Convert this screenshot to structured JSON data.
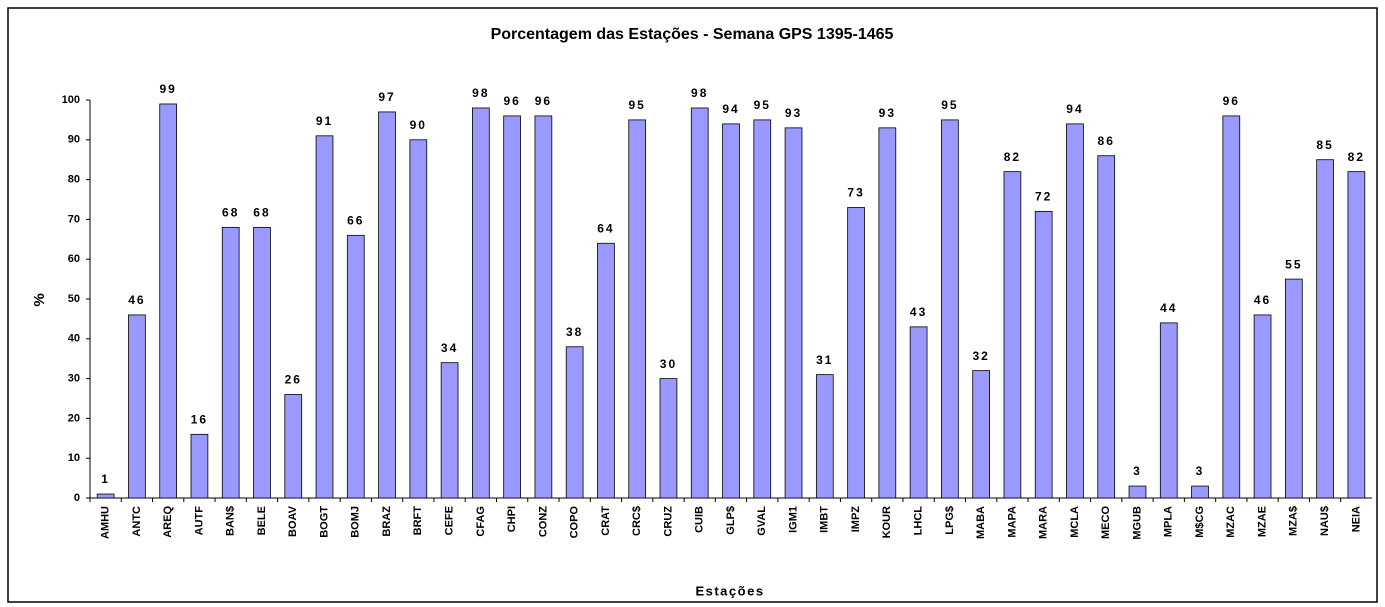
{
  "chart_data": {
    "type": "bar",
    "title": "Porcentagem das Estações - Semana GPS 1395-1465",
    "x_label": "Estações",
    "y_label": "%",
    "categories": [
      "AMHU",
      "ANTC",
      "AREQ",
      "AUTF",
      "BAN$",
      "BELE",
      "BOAV",
      "BOGT",
      "BOMJ",
      "BRAZ",
      "BRFT",
      "CEFE",
      "CFAG",
      "CHPI",
      "CONZ",
      "COPO",
      "CRAT",
      "CRC$",
      "CRUZ",
      "CUIB",
      "GLP$",
      "GVAL",
      "IGM1",
      "IMBT",
      "IMPZ",
      "KOUR",
      "LHCL",
      "LPG$",
      "MABA",
      "MAPA",
      "MARA",
      "MCLA",
      "MECO",
      "MGUB",
      "MPLA",
      "M$CG",
      "MZAC",
      "MZAE",
      "MZA$",
      "NAU$",
      "NEIA"
    ],
    "values": [
      1,
      46,
      99,
      16,
      68,
      68,
      26,
      91,
      66,
      97,
      90,
      34,
      98,
      96,
      96,
      38,
      64,
      95,
      30,
      98,
      94,
      95,
      93,
      31,
      73,
      93,
      43,
      95,
      32,
      82,
      72,
      94,
      86,
      3,
      44,
      3,
      96,
      46,
      55,
      85,
      82
    ],
    "color": "#9999ff",
    "ylim": [
      0,
      100
    ],
    "yticks": [
      0,
      10,
      20,
      30,
      40,
      50,
      60,
      70,
      80,
      90,
      100
    ],
    "grid": false
  }
}
